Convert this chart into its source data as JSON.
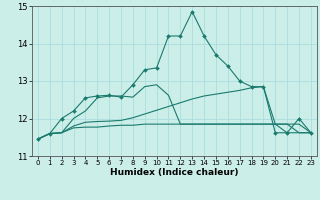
{
  "title": "",
  "xlabel": "Humidex (Indice chaleur)",
  "background_color": "#cceee8",
  "grid_color": "#aadddd",
  "line_color": "#1a7a6e",
  "x_data": [
    0,
    1,
    2,
    3,
    4,
    5,
    6,
    7,
    8,
    9,
    10,
    11,
    12,
    13,
    14,
    15,
    16,
    17,
    18,
    19,
    20,
    21,
    22,
    23
  ],
  "series": [
    [
      11.45,
      11.6,
      12.0,
      12.2,
      12.55,
      12.6,
      12.62,
      12.57,
      12.9,
      13.3,
      13.35,
      14.2,
      14.2,
      14.85,
      14.2,
      13.7,
      13.4,
      13.0,
      12.85,
      12.85,
      11.62,
      11.62,
      12.0,
      11.62
    ],
    [
      11.45,
      11.6,
      11.62,
      12.0,
      12.2,
      12.55,
      12.6,
      12.6,
      12.57,
      12.85,
      12.9,
      12.62,
      11.85,
      11.85,
      11.85,
      11.85,
      11.85,
      11.85,
      11.85,
      11.85,
      11.85,
      11.85,
      11.85,
      11.62
    ],
    [
      11.45,
      11.6,
      11.62,
      11.8,
      11.9,
      11.92,
      11.93,
      11.95,
      12.02,
      12.12,
      12.22,
      12.32,
      12.42,
      12.52,
      12.6,
      12.65,
      12.7,
      12.75,
      12.82,
      12.85,
      11.85,
      11.62,
      11.62,
      11.62
    ],
    [
      11.45,
      11.6,
      11.62,
      11.75,
      11.77,
      11.77,
      11.8,
      11.82,
      11.82,
      11.85,
      11.85,
      11.85,
      11.85,
      11.85,
      11.85,
      11.85,
      11.85,
      11.85,
      11.85,
      11.85,
      11.85,
      11.85,
      11.62,
      11.62
    ]
  ],
  "has_markers": [
    true,
    false,
    false,
    false
  ],
  "ylim": [
    11.0,
    15.0
  ],
  "xlim": [
    -0.5,
    23.5
  ],
  "yticks": [
    11,
    12,
    13,
    14,
    15
  ],
  "xticks": [
    0,
    1,
    2,
    3,
    4,
    5,
    6,
    7,
    8,
    9,
    10,
    11,
    12,
    13,
    14,
    15,
    16,
    17,
    18,
    19,
    20,
    21,
    22,
    23
  ]
}
